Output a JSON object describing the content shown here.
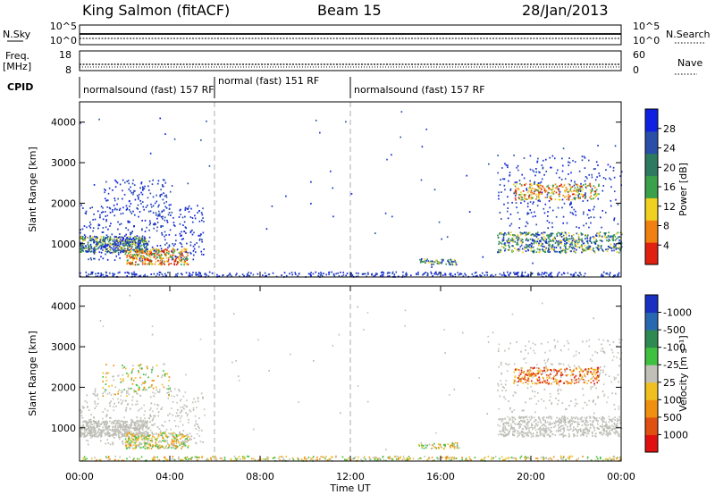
{
  "header": {
    "station": "King Salmon (fitACF)",
    "beam": "Beam 15",
    "date": "28/Jan/2013"
  },
  "top_panels": {
    "nsky_label": "N.Sky",
    "nsearch_label": "N.Search",
    "nsky_ticks": [
      "10^5",
      "10^0"
    ],
    "nsearch_ticks": [
      "10^5",
      "10^0"
    ],
    "freq_label_1": "Freq.",
    "freq_label_2": "[MHz]",
    "freq_ticks": [
      "18",
      "8"
    ],
    "nave_label": "Nave",
    "nave_ticks": [
      "60",
      "0"
    ],
    "cpid_label": "CPID",
    "cpid_segments": [
      {
        "text": "normalsound (fast) 157 RF"
      },
      {
        "text": "normal (fast) 151 RF"
      },
      {
        "text": "normalsound (fast) 157 RF"
      }
    ]
  },
  "chart_data": [
    {
      "type": "heatmap",
      "name": "power-panel",
      "ylabel": "Slant Range [km]",
      "yticks": [
        1000,
        2000,
        3000,
        4000
      ],
      "ylim": [
        180,
        4500
      ],
      "colorbar_label": "Power [dB]",
      "colorbar_ticks": [
        4,
        8,
        12,
        16,
        20,
        24,
        28
      ],
      "colorbar_colors": [
        "#1020e0",
        "#2a4fa8",
        "#2e7a60",
        "#3aa04a",
        "#f0d020",
        "#f08010",
        "#e02010"
      ]
    },
    {
      "type": "heatmap",
      "name": "velocity-panel",
      "ylabel": "Slant Range [km]",
      "yticks": [
        1000,
        2000,
        3000,
        4000
      ],
      "ylim": [
        180,
        4500
      ],
      "colorbar_label": "Velocity [m s⁻¹]",
      "colorbar_ticks": [
        1000,
        500,
        100,
        25,
        -25,
        -100,
        -500,
        -1000
      ],
      "colorbar_colors": [
        "#1a30c0",
        "#2868b0",
        "#2e8a50",
        "#40c040",
        "#c0c0b8",
        "#f0c020",
        "#f09010",
        "#e05010",
        "#e01010"
      ]
    }
  ],
  "time_axis": {
    "xlabel": "Time UT",
    "ticks": [
      "00:00",
      "04:00",
      "08:00",
      "12:00",
      "16:00",
      "20:00",
      "00:00"
    ]
  }
}
